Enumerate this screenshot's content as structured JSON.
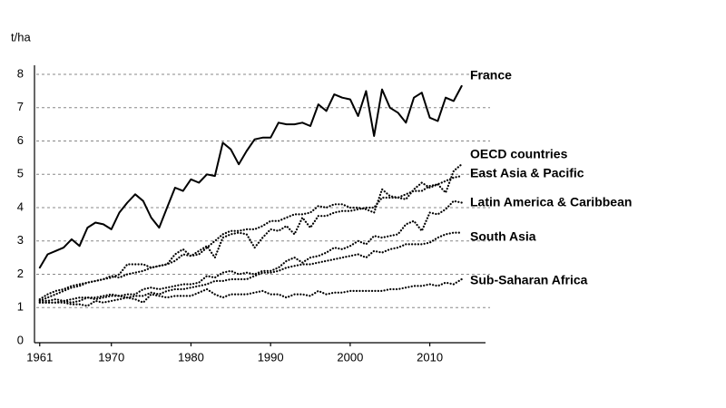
{
  "chart_data": {
    "type": "line",
    "y_label": "t/ha",
    "x": [
      1961,
      1962,
      1963,
      1964,
      1965,
      1966,
      1967,
      1968,
      1969,
      1970,
      1971,
      1972,
      1973,
      1974,
      1975,
      1976,
      1977,
      1978,
      1979,
      1980,
      1981,
      1982,
      1983,
      1984,
      1985,
      1986,
      1987,
      1988,
      1989,
      1990,
      1991,
      1992,
      1993,
      1994,
      1995,
      1996,
      1997,
      1998,
      1999,
      2000,
      2001,
      2002,
      2003,
      2004,
      2005,
      2006,
      2007,
      2008,
      2009,
      2010,
      2011,
      2012,
      2013,
      2014
    ],
    "series": [
      {
        "name": "France",
        "color": "#000000",
        "style": "solid",
        "values": [
          2.2,
          2.6,
          2.7,
          2.8,
          3.05,
          2.85,
          3.4,
          3.55,
          3.5,
          3.35,
          3.85,
          4.15,
          4.4,
          4.2,
          3.7,
          3.4,
          4.0,
          4.6,
          4.5,
          4.85,
          4.75,
          5.0,
          4.95,
          5.95,
          5.75,
          5.3,
          5.7,
          6.05,
          6.1,
          6.1,
          6.55,
          6.5,
          6.5,
          6.55,
          6.45,
          7.1,
          6.9,
          7.4,
          7.3,
          7.25,
          6.75,
          7.5,
          6.15,
          7.55,
          7.0,
          6.85,
          6.55,
          7.3,
          7.45,
          6.7,
          6.6,
          7.3,
          7.2,
          7.65
        ]
      },
      {
        "name": "OECD countries",
        "color": "#000000",
        "style": "dotted",
        "values": [
          1.25,
          1.4,
          1.5,
          1.55,
          1.65,
          1.7,
          1.75,
          1.8,
          1.85,
          1.9,
          2.0,
          2.3,
          2.3,
          2.3,
          2.2,
          2.25,
          2.3,
          2.6,
          2.75,
          2.55,
          2.6,
          2.8,
          3.0,
          3.2,
          3.3,
          3.3,
          3.35,
          3.35,
          3.45,
          3.6,
          3.6,
          3.7,
          3.8,
          3.8,
          3.85,
          4.05,
          4.0,
          4.1,
          4.1,
          4.0,
          4.0,
          3.95,
          3.85,
          4.55,
          4.35,
          4.3,
          4.25,
          4.55,
          4.75,
          4.6,
          4.7,
          4.45,
          5.1,
          5.3
        ]
      },
      {
        "name": "East Asia & Pacific",
        "color": "#000000",
        "style": "dotted",
        "values": [
          1.2,
          1.3,
          1.4,
          1.5,
          1.6,
          1.65,
          1.75,
          1.8,
          1.85,
          1.95,
          1.9,
          2.0,
          2.05,
          2.1,
          2.2,
          2.25,
          2.3,
          2.4,
          2.6,
          2.55,
          2.7,
          2.85,
          2.5,
          3.1,
          3.2,
          3.25,
          3.2,
          2.8,
          3.1,
          3.35,
          3.3,
          3.45,
          3.2,
          3.7,
          3.4,
          3.75,
          3.75,
          3.85,
          3.9,
          3.9,
          3.95,
          4.0,
          4.0,
          4.3,
          4.3,
          4.3,
          4.4,
          4.5,
          4.5,
          4.65,
          4.7,
          4.8,
          4.9,
          4.95
        ]
      },
      {
        "name": "Latin America & Caribbean",
        "color": "#000000",
        "style": "dotted",
        "values": [
          1.2,
          1.2,
          1.25,
          1.2,
          1.25,
          1.3,
          1.3,
          1.3,
          1.35,
          1.4,
          1.35,
          1.4,
          1.4,
          1.55,
          1.6,
          1.55,
          1.6,
          1.65,
          1.7,
          1.7,
          1.75,
          1.95,
          1.9,
          2.05,
          2.1,
          2.0,
          2.05,
          2.0,
          2.1,
          2.1,
          2.2,
          2.4,
          2.5,
          2.35,
          2.5,
          2.55,
          2.65,
          2.8,
          2.75,
          2.85,
          3.0,
          2.9,
          3.15,
          3.1,
          3.15,
          3.2,
          3.5,
          3.6,
          3.3,
          3.85,
          3.8,
          3.95,
          4.2,
          4.15
        ]
      },
      {
        "name": "South Asia",
        "color": "#000000",
        "style": "dotted",
        "values": [
          1.15,
          1.15,
          1.15,
          1.2,
          1.15,
          1.2,
          1.3,
          1.25,
          1.3,
          1.35,
          1.35,
          1.3,
          1.35,
          1.35,
          1.45,
          1.4,
          1.5,
          1.55,
          1.55,
          1.6,
          1.65,
          1.7,
          1.8,
          1.8,
          1.85,
          1.85,
          1.85,
          1.95,
          2.05,
          2.05,
          2.1,
          2.2,
          2.25,
          2.3,
          2.3,
          2.35,
          2.4,
          2.45,
          2.5,
          2.55,
          2.6,
          2.5,
          2.7,
          2.65,
          2.75,
          2.8,
          2.9,
          2.9,
          2.9,
          2.95,
          3.1,
          3.2,
          3.25,
          3.25
        ]
      },
      {
        "name": "Sub-Saharan Africa",
        "color": "#000000",
        "style": "dotted",
        "values": [
          1.15,
          1.15,
          1.15,
          1.15,
          1.1,
          1.1,
          1.05,
          1.2,
          1.15,
          1.2,
          1.25,
          1.3,
          1.25,
          1.15,
          1.4,
          1.35,
          1.3,
          1.35,
          1.35,
          1.35,
          1.45,
          1.55,
          1.4,
          1.3,
          1.4,
          1.4,
          1.4,
          1.45,
          1.5,
          1.4,
          1.4,
          1.3,
          1.4,
          1.4,
          1.35,
          1.5,
          1.4,
          1.45,
          1.45,
          1.5,
          1.5,
          1.5,
          1.5,
          1.5,
          1.55,
          1.55,
          1.6,
          1.65,
          1.65,
          1.7,
          1.65,
          1.75,
          1.7,
          1.85
        ]
      }
    ],
    "xlim": [
      1960,
      2017
    ],
    "xticks": [
      1961,
      1970,
      1980,
      1990,
      2000,
      2010
    ],
    "ylim": [
      0,
      8.3
    ],
    "yticks": [
      0,
      1,
      2,
      3,
      4,
      5,
      6,
      7,
      8
    ],
    "grid": true
  }
}
